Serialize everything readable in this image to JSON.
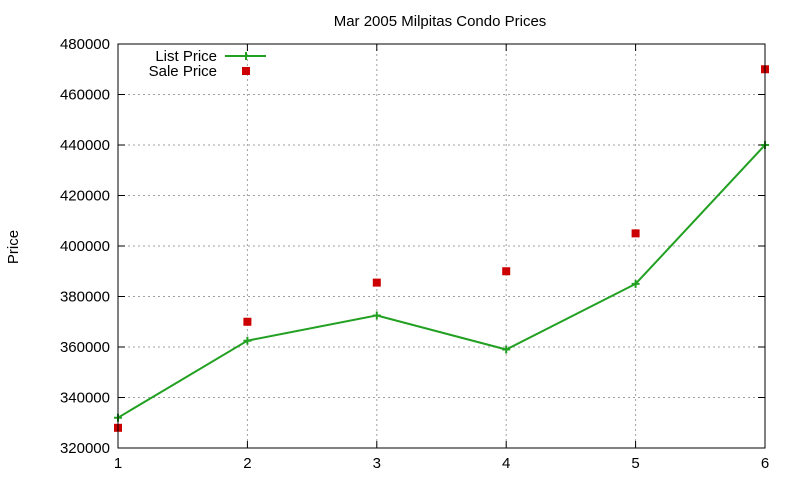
{
  "chart_data": {
    "type": "line",
    "title": "Mar 2005 Milpitas Condo Prices",
    "xlabel": "",
    "ylabel": "Price",
    "x": [
      1,
      2,
      3,
      4,
      5,
      6
    ],
    "xlim": [
      1,
      6
    ],
    "ylim": [
      320000,
      480000
    ],
    "xticks": [
      "1",
      "2",
      "3",
      "4",
      "5",
      "6"
    ],
    "yticks": [
      "320000",
      "340000",
      "360000",
      "380000",
      "400000",
      "420000",
      "440000",
      "460000",
      "480000"
    ],
    "grid": true,
    "legend_position": "top-left",
    "series": [
      {
        "name": "List Price",
        "mark": "line+cross",
        "color": "#22a022",
        "values": [
          332000,
          362500,
          372500,
          359000,
          385000,
          440000
        ]
      },
      {
        "name": "Sale Price",
        "mark": "square",
        "color": "#cc0000",
        "values": [
          328000,
          370000,
          385500,
          390000,
          405000,
          470000
        ]
      }
    ]
  }
}
